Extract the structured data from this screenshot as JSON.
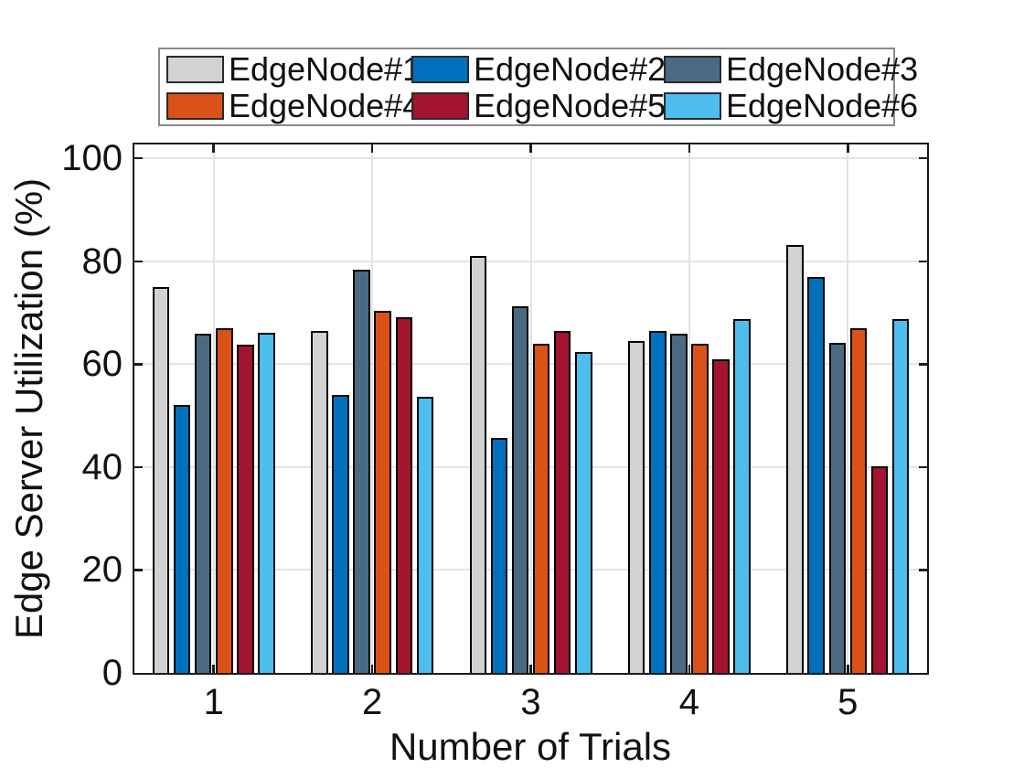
{
  "chart_data": {
    "type": "bar",
    "title": "",
    "xlabel": "Number of Trials",
    "ylabel": "Edge Server Utilization (%)",
    "categories": [
      "1",
      "2",
      "3",
      "4",
      "5"
    ],
    "series": [
      {
        "name": "EdgeNode#1",
        "color": "#D2D2D2",
        "values": [
          74.9,
          66.4,
          81.0,
          64.5,
          83.2
        ]
      },
      {
        "name": "EdgeNode#2",
        "color": "#0072BD",
        "values": [
          52.0,
          54.0,
          45.7,
          66.5,
          77.0
        ]
      },
      {
        "name": "EdgeNode#3",
        "color": "#4A6A82",
        "values": [
          66.0,
          78.3,
          71.3,
          66.0,
          64.2
        ]
      },
      {
        "name": "EdgeNode#4",
        "color": "#D95319",
        "values": [
          67.0,
          70.3,
          64.0,
          63.9,
          67.0
        ]
      },
      {
        "name": "EdgeNode#5",
        "color": "#A2142F",
        "values": [
          63.8,
          69.2,
          66.4,
          61.0,
          40.2
        ]
      },
      {
        "name": "EdgeNode#6",
        "color": "#4DBEEE",
        "values": [
          66.1,
          53.7,
          62.3,
          68.7,
          68.7
        ]
      }
    ],
    "ylim": [
      0,
      102.7
    ],
    "yticks": [
      0,
      20,
      40,
      60,
      80,
      100
    ],
    "grid": true,
    "legend_position": "top",
    "legend_columns": 3,
    "bar_edge_color": "#000000",
    "grid_color": "#e3e3e3"
  }
}
